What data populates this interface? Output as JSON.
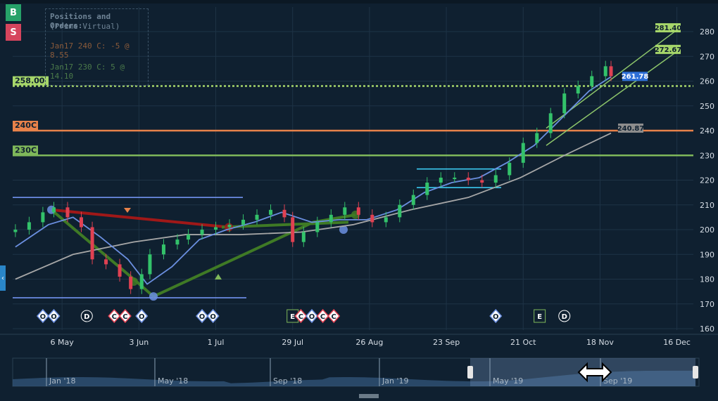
{
  "side_buttons": {
    "buy": "B",
    "sell": "S"
  },
  "positions_panel": {
    "title": "Positions and Orders:",
    "subtitle": "(Prime Virtual)",
    "orders": [
      "Jan17 240 C: -5 @ 8.55",
      "Jan17 230 C: 5 @ 14.10"
    ]
  },
  "colors": {
    "background": "#0f2030",
    "bull": "#33c26a",
    "bear": "#e04152",
    "sma_fast": "#6b8fe0",
    "sma_slow": "#a7a7a7",
    "level_258": "#a6d66a",
    "level_240": "#e8824a",
    "level_230": "#7fb85a"
  },
  "chart_data": {
    "type": "line",
    "title": "",
    "ylim": [
      160,
      285
    ],
    "y_ticks": [
      160,
      170,
      180,
      190,
      200,
      210,
      220,
      230,
      240,
      250,
      260,
      270,
      280
    ],
    "x_ticks": [
      {
        "date": "2019-05-06",
        "label": "6 May"
      },
      {
        "date": "2019-06-03",
        "label": "3 Jun"
      },
      {
        "date": "2019-07-01",
        "label": "1 Jul"
      },
      {
        "date": "2019-07-29",
        "label": "29 Jul"
      },
      {
        "date": "2019-08-26",
        "label": "26 Aug"
      },
      {
        "date": "2019-09-23",
        "label": "23 Sep"
      },
      {
        "date": "2019-10-21",
        "label": "21 Oct"
      },
      {
        "date": "2019-11-18",
        "label": "18 Nov"
      },
      {
        "date": "2019-12-16",
        "label": "16 Dec"
      }
    ],
    "xlim": [
      "2019-04-18",
      "2019-12-22"
    ],
    "price_series": {
      "x": [
        "2019-04-19",
        "2019-04-24",
        "2019-04-29",
        "2019-05-03",
        "2019-05-08",
        "2019-05-13",
        "2019-05-17",
        "2019-05-22",
        "2019-05-27",
        "2019-05-31",
        "2019-06-04",
        "2019-06-07",
        "2019-06-12",
        "2019-06-17",
        "2019-06-21",
        "2019-06-26",
        "2019-07-01",
        "2019-07-06",
        "2019-07-11",
        "2019-07-16",
        "2019-07-21",
        "2019-07-26",
        "2019-07-29",
        "2019-08-02",
        "2019-08-07",
        "2019-08-12",
        "2019-08-17",
        "2019-08-22",
        "2019-08-27",
        "2019-09-01",
        "2019-09-06",
        "2019-09-11",
        "2019-09-16",
        "2019-09-21",
        "2019-09-26",
        "2019-10-01",
        "2019-10-06",
        "2019-10-11",
        "2019-10-16",
        "2019-10-21",
        "2019-10-26",
        "2019-10-31",
        "2019-11-05",
        "2019-11-10",
        "2019-11-15",
        "2019-11-20",
        "2019-11-22"
      ],
      "close": [
        200,
        203,
        207,
        209,
        205,
        201,
        188,
        186,
        181,
        176,
        182,
        190,
        194,
        196,
        198,
        200,
        201,
        202,
        204,
        206,
        208,
        205,
        195,
        199,
        203,
        206,
        209,
        206,
        203,
        205,
        210,
        214,
        219,
        221,
        221,
        220,
        219,
        222,
        227,
        235,
        239,
        247,
        255,
        258,
        262,
        266,
        262
      ]
    },
    "sma_fast": {
      "x": [
        "2019-04-19",
        "2019-05-01",
        "2019-05-10",
        "2019-05-20",
        "2019-05-30",
        "2019-06-06",
        "2019-06-15",
        "2019-06-25",
        "2019-07-05",
        "2019-07-15",
        "2019-07-25",
        "2019-08-05",
        "2019-08-15",
        "2019-08-25",
        "2019-09-05",
        "2019-09-15",
        "2019-09-25",
        "2019-10-05",
        "2019-10-15",
        "2019-10-25",
        "2019-11-04",
        "2019-11-14",
        "2019-11-22"
      ],
      "values": [
        193,
        202,
        205,
        197,
        188,
        178,
        185,
        196,
        200,
        203,
        207,
        203,
        204,
        204,
        208,
        215,
        219,
        221,
        227,
        234,
        245,
        256,
        261.78
      ]
    },
    "sma_slow": {
      "x": [
        "2019-04-19",
        "2019-05-10",
        "2019-06-01",
        "2019-06-20",
        "2019-07-10",
        "2019-08-01",
        "2019-08-20",
        "2019-09-10",
        "2019-10-01",
        "2019-10-20",
        "2019-11-05",
        "2019-11-22"
      ],
      "values": [
        180,
        190,
        195,
        198,
        198,
        199,
        202,
        208,
        213,
        221,
        230,
        239
      ]
    },
    "horizontal_levels": [
      {
        "label": "258.00",
        "value": 258,
        "style": "dotted"
      },
      {
        "label": "240C",
        "value": 240,
        "style": "solid"
      },
      {
        "label": "230C",
        "value": 230,
        "style": "solid"
      }
    ],
    "price_labels": [
      {
        "label": "281.40",
        "value": 281.4
      },
      {
        "label": "272.67",
        "value": 272.67
      },
      {
        "label": "261.78",
        "value": 261.78
      },
      {
        "label": "240.87",
        "value": 240.87
      }
    ],
    "event_markers": [
      {
        "label": "O",
        "date": "2019-04-29"
      },
      {
        "label": "O",
        "date": "2019-05-03"
      },
      {
        "label": "D",
        "date": "2019-05-15"
      },
      {
        "label": "C",
        "date": "2019-05-25"
      },
      {
        "label": "C",
        "date": "2019-05-29"
      },
      {
        "label": "O",
        "date": "2019-06-04"
      },
      {
        "label": "O",
        "date": "2019-06-26"
      },
      {
        "label": "O",
        "date": "2019-06-30"
      },
      {
        "label": "E",
        "date": "2019-07-29"
      },
      {
        "label": "C",
        "date": "2019-08-01"
      },
      {
        "label": "O",
        "date": "2019-08-05"
      },
      {
        "label": "C",
        "date": "2019-08-09"
      },
      {
        "label": "C",
        "date": "2019-08-13"
      },
      {
        "label": "O",
        "date": "2019-10-11"
      },
      {
        "label": "E",
        "date": "2019-10-27"
      },
      {
        "label": "D",
        "date": "2019-11-05"
      }
    ],
    "navigator": {
      "labels": [
        "Jan '18",
        "May '18",
        "Sep '18",
        "Jan '19",
        "May '19",
        "Sep '19"
      ]
    }
  }
}
